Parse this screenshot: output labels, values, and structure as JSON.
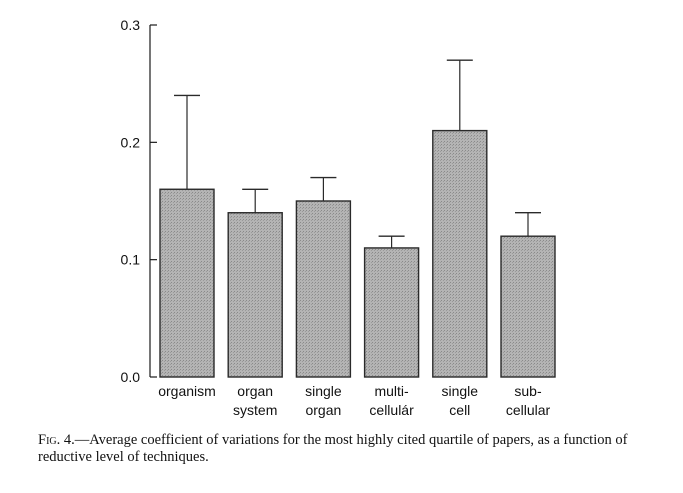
{
  "chart_data": {
    "type": "bar",
    "categories": [
      [
        "organism"
      ],
      [
        "organ",
        "system"
      ],
      [
        "single",
        "organ"
      ],
      [
        "multi-",
        "cellulár"
      ],
      [
        "single",
        "cell"
      ],
      [
        "sub-",
        "cellular"
      ]
    ],
    "values": [
      0.16,
      0.14,
      0.15,
      0.11,
      0.21,
      0.12
    ],
    "error_upper": [
      0.24,
      0.16,
      0.17,
      0.12,
      0.27,
      0.14
    ],
    "ylim": [
      0.0,
      0.3
    ],
    "yticks": [
      "0.0",
      "0.1",
      "0.2",
      "0.3"
    ],
    "ytick_values": [
      0.0,
      0.1,
      0.2,
      0.3
    ],
    "bar_color": "#a8a8a8",
    "bar_edge_color": "#2a2a2a",
    "grid": false
  },
  "caption": {
    "fig_label": "Fig. 4.",
    "text": "—Average coefficient of variations for the most highly cited quartile of papers, as a function of reductive level of techniques."
  }
}
